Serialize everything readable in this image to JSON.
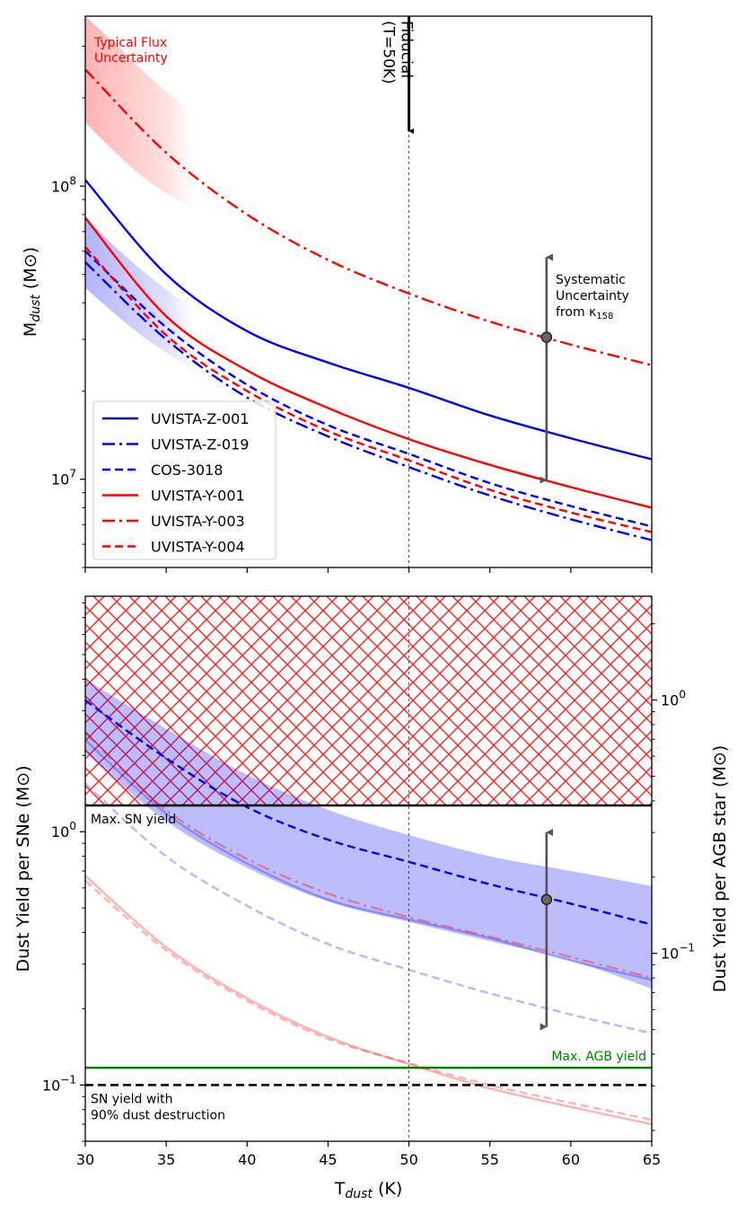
{
  "chart_data": [
    {
      "type": "line",
      "panel": "top",
      "ylabel_main": "M",
      "ylabel_sub": "dust",
      "ylabel_unit": " (M⊙)",
      "yscale": "log",
      "xlim": [
        30,
        65
      ],
      "ylim": [
        5000000,
        380000000
      ],
      "xticks": [
        30,
        35,
        40,
        45,
        50,
        55,
        60,
        65
      ],
      "yticks": [
        {
          "value": 10000000,
          "base": "10",
          "exp": "7"
        },
        {
          "value": 100000000,
          "base": "10",
          "exp": "8"
        }
      ],
      "series": [
        {
          "name": "UVISTA-Z-001",
          "color": "#0000ee",
          "style": "solid",
          "x": [
            30,
            35,
            40,
            45,
            50,
            55,
            60,
            65
          ],
          "y": [
            105000000,
            50000000,
            32000000,
            25000000,
            20500000,
            16500000,
            13800000,
            11700000
          ]
        },
        {
          "name": "UVISTA-Z-019",
          "color": "#0000ee",
          "style": "dashdot",
          "x": [
            30,
            35,
            40,
            45,
            50,
            55,
            60,
            65
          ],
          "y": [
            55000000,
            30000000,
            19000000,
            14000000,
            11000000,
            8800000,
            7300000,
            6200000
          ]
        },
        {
          "name": "COS-3018",
          "color": "#0000ee",
          "style": "dashed",
          "x": [
            30,
            35,
            40,
            45,
            50,
            55,
            60,
            65
          ],
          "y": [
            60000000,
            33000000,
            21000000,
            15300000,
            12200000,
            9700000,
            8100000,
            6900000
          ]
        },
        {
          "name": "UVISTA-Y-001",
          "color": "#ff0000",
          "style": "solid",
          "x": [
            30,
            35,
            40,
            45,
            50,
            55,
            60,
            65
          ],
          "y": [
            78000000,
            36000000,
            23500000,
            17500000,
            13700000,
            11200000,
            9400000,
            8000000
          ]
        },
        {
          "name": "UVISTA-Y-003",
          "color": "#ff0000",
          "style": "dashdot",
          "x": [
            30,
            35,
            40,
            45,
            50,
            55,
            60,
            65
          ],
          "y": [
            250000000,
            130000000,
            80000000,
            56000000,
            43000000,
            34500000,
            28800000,
            24500000
          ]
        },
        {
          "name": "UVISTA-Y-004",
          "color": "#ff0000",
          "style": "dashed",
          "x": [
            30,
            35,
            40,
            45,
            50,
            55,
            60,
            65
          ],
          "y": [
            62000000,
            31000000,
            20000000,
            14600000,
            11600000,
            9200000,
            7700000,
            6600000
          ]
        }
      ],
      "bands": [
        {
          "name": "Typical Flux Uncertainty",
          "color": "#ff0000",
          "x": [
            30,
            32,
            34,
            36.7
          ],
          "lower": [
            165000000,
            128000000,
            103000000,
            83000000
          ],
          "upper": [
            380000000,
            300000000,
            235000000,
            175000000
          ]
        },
        {
          "color": "#0000ff",
          "x": [
            30,
            32,
            34,
            36.7
          ],
          "lower": [
            45000000,
            36000000,
            29500000,
            23500000
          ],
          "upper": [
            78000000,
            61000000,
            49000000,
            38000000
          ]
        }
      ],
      "fiducial": {
        "x": 50,
        "label_line1": "Fiducial",
        "label_line2": "(T=50K)"
      },
      "band_label_line1": "Typical Flux",
      "band_label_line2": "Uncertainty",
      "systematic": {
        "x": 58.5,
        "y": 30500000,
        "low": 9800000,
        "high": 58000000,
        "label_line1": "Systematic",
        "label_line2": "Uncertainty",
        "label_line3_main": "from κ",
        "label_line3_sub": "158"
      }
    },
    {
      "type": "line",
      "panel": "bottom",
      "xlabel_main": "T",
      "xlabel_sub": "dust",
      "xlabel_unit": " (K)",
      "ylabel_left": "Dust Yield per SNe (M⊙)",
      "ylabel_right": "Dust Yield per AGB star (M⊙)",
      "yscale": "log",
      "xlim": [
        30,
        65
      ],
      "ylim": [
        0.06,
        8.5
      ],
      "xticks": [
        30,
        35,
        40,
        45,
        50,
        55,
        60,
        65
      ],
      "yticks_left": [
        {
          "value": 0.1,
          "base": "10",
          "exp": "−1"
        },
        {
          "value": 1,
          "base": "10",
          "exp": "0"
        }
      ],
      "yticks_right": [
        {
          "value": 0.331,
          "base": "10",
          "exp": "−1"
        },
        {
          "value": 3.31,
          "base": "10",
          "exp": "0"
        }
      ],
      "series": [
        {
          "color": "#0000ee",
          "style": "dashed",
          "opacity": 1,
          "x": [
            30,
            35,
            40,
            45,
            50,
            55,
            60,
            65
          ],
          "y": [
            3.3,
            1.95,
            1.25,
            0.93,
            0.76,
            0.62,
            0.52,
            0.43
          ]
        },
        {
          "color": "#0000ee",
          "style": "dashed",
          "opacity": 0.28,
          "x": [
            30,
            35,
            40,
            45,
            50,
            55,
            60,
            65
          ],
          "y": [
            1.55,
            0.8,
            0.51,
            0.36,
            0.285,
            0.23,
            0.19,
            0.16
          ]
        },
        {
          "color": "#0000ee",
          "style": "solid",
          "opacity": 0.28,
          "x": [
            30,
            35,
            40,
            45,
            50,
            55,
            60,
            65
          ],
          "y": [
            2.3,
            1.18,
            0.75,
            0.54,
            0.45,
            0.38,
            0.31,
            0.26
          ]
        },
        {
          "color": "#ff0000",
          "style": "dashdot",
          "opacity": 0.35,
          "x": [
            30,
            35,
            40,
            45,
            50,
            55,
            60,
            65
          ],
          "y": [
            2.45,
            1.22,
            0.78,
            0.57,
            0.46,
            0.385,
            0.32,
            0.265
          ]
        },
        {
          "color": "#ff0000",
          "style": "solid",
          "opacity": 0.3,
          "x": [
            30,
            35,
            40,
            45,
            50,
            55,
            60,
            65
          ],
          "y": [
            0.67,
            0.35,
            0.22,
            0.155,
            0.121,
            0.097,
            0.082,
            0.07
          ]
        },
        {
          "color": "#ff0000",
          "style": "dashed",
          "opacity": 0.3,
          "x": [
            30,
            35,
            40,
            45,
            50,
            55,
            60,
            65
          ],
          "y": [
            0.64,
            0.34,
            0.215,
            0.152,
            0.122,
            0.1,
            0.085,
            0.073
          ]
        }
      ],
      "band": {
        "color": "#0000ee",
        "opacity": 0.26,
        "x": [
          30,
          35,
          40,
          45,
          50,
          55,
          60,
          65
        ],
        "lower": [
          2.05,
          1.1,
          0.72,
          0.53,
          0.44,
          0.37,
          0.31,
          0.24
        ],
        "upper": [
          4.0,
          2.55,
          1.68,
          1.22,
          0.97,
          0.8,
          0.7,
          0.61
        ]
      },
      "hlines": [
        {
          "name": "Max. SN yield",
          "y": 1.27,
          "color": "#000000",
          "style": "solid"
        },
        {
          "name": "Max. AGB yield",
          "y": 0.117,
          "color": "#008000",
          "style": "solid"
        },
        {
          "name": "SN yield with 90% dust destruction",
          "y": 0.1,
          "color": "#000000",
          "style": "dashed"
        }
      ],
      "labels": {
        "max_sn": "Max. SN yield",
        "max_agb": "Max. AGB yield",
        "destruction_line1": "SN yield with",
        "destruction_line2": "90% dust destruction"
      },
      "hatch_region": {
        "y_from": 1.27,
        "y_to": 8.5,
        "color": "#ff0000"
      },
      "fiducial_x": 50,
      "systematic": {
        "x": 58.5,
        "y": 0.54,
        "low": 0.167,
        "high": 1.01
      }
    }
  ]
}
